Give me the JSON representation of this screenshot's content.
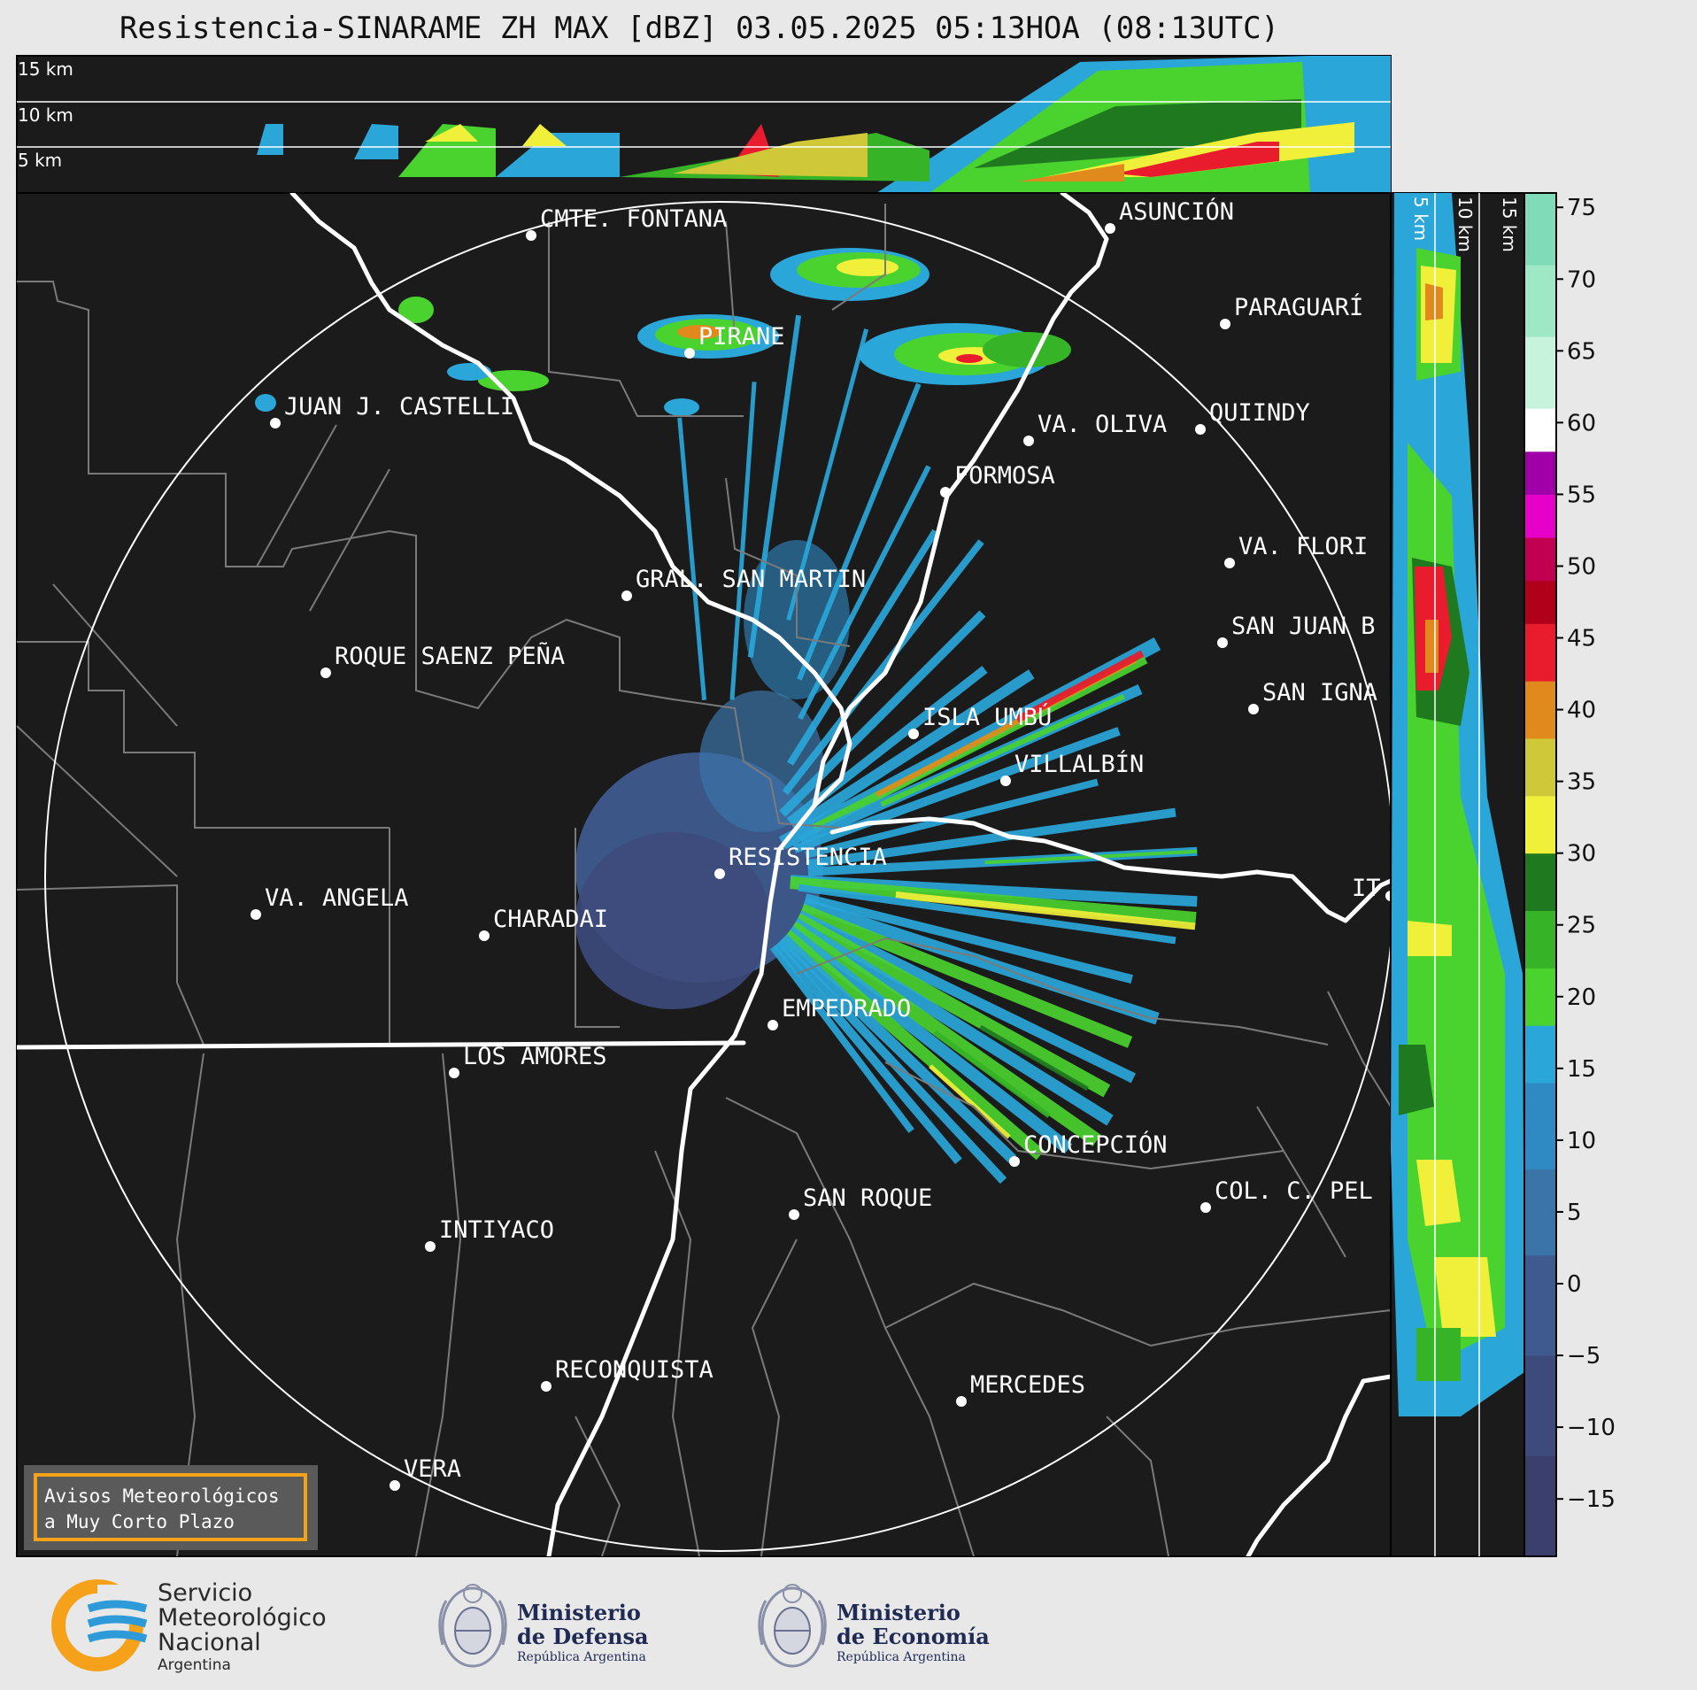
{
  "title": "Resistencia-SINARAME ZH MAX [dBZ] 03.05.2025 05:13HOA (08:13UTC)",
  "top_panel": {
    "height_labels": [
      "15 km",
      "10 km",
      "5 km"
    ]
  },
  "side_panel": {
    "height_labels": [
      "5 km",
      "10 km",
      "15 km"
    ]
  },
  "colorbar": {
    "ticks": [
      "75",
      "70",
      "65",
      "60",
      "55",
      "50",
      "45",
      "40",
      "35",
      "30",
      "25",
      "20",
      "15",
      "10",
      "5",
      "0",
      "−5",
      "−10",
      "−15"
    ],
    "tick_values": [
      75,
      70,
      65,
      60,
      55,
      50,
      45,
      40,
      35,
      30,
      25,
      20,
      15,
      10,
      5,
      0,
      -5,
      -10,
      -15
    ],
    "range": [
      -19,
      76
    ],
    "stops": [
      {
        "from": -19,
        "to": -12,
        "color": "#3b3f6e"
      },
      {
        "from": -12,
        "to": -5,
        "color": "#3d4a7c"
      },
      {
        "from": -5,
        "to": 2,
        "color": "#3f5a8e"
      },
      {
        "from": 2,
        "to": 8,
        "color": "#3a74a8"
      },
      {
        "from": 8,
        "to": 14,
        "color": "#2f8ac4"
      },
      {
        "from": 14,
        "to": 18,
        "color": "#2aa6d9"
      },
      {
        "from": 18,
        "to": 22,
        "color": "#4ad22e"
      },
      {
        "from": 22,
        "to": 26,
        "color": "#37b327"
      },
      {
        "from": 26,
        "to": 30,
        "color": "#1f7a1f"
      },
      {
        "from": 30,
        "to": 34,
        "color": "#f0f03a"
      },
      {
        "from": 34,
        "to": 38,
        "color": "#cfc939"
      },
      {
        "from": 38,
        "to": 42,
        "color": "#e08a1e"
      },
      {
        "from": 42,
        "to": 46,
        "color": "#e81c2c"
      },
      {
        "from": 46,
        "to": 49,
        "color": "#b0001a"
      },
      {
        "from": 49,
        "to": 52,
        "color": "#c20052"
      },
      {
        "from": 52,
        "to": 55,
        "color": "#e600c8"
      },
      {
        "from": 55,
        "to": 58,
        "color": "#a000a8"
      },
      {
        "from": 58,
        "to": 61,
        "color": "#ffffff"
      },
      {
        "from": 61,
        "to": 66,
        "color": "#c7f2dc"
      },
      {
        "from": 66,
        "to": 71,
        "color": "#9ee8c6"
      },
      {
        "from": 71,
        "to": 76,
        "color": "#7fdbb8"
      }
    ]
  },
  "cities": [
    {
      "name": "CMTE. FONTANA"
    },
    {
      "name": "ASUNCIÓN"
    },
    {
      "name": "PARAGUARÍ"
    },
    {
      "name": "PIRANE"
    },
    {
      "name": "JUAN J. CASTELLI"
    },
    {
      "name": "VA. OLIVA"
    },
    {
      "name": "QUIINDY"
    },
    {
      "name": "FORMOSA"
    },
    {
      "name": "VA. FLORI"
    },
    {
      "name": "GRAL. SAN MARTIN"
    },
    {
      "name": "SAN JUAN B"
    },
    {
      "name": "ROQUE SAENZ PEÑA"
    },
    {
      "name": "SAN IGNA"
    },
    {
      "name": "ISLA UMBÚ"
    },
    {
      "name": "VILLALBÍN"
    },
    {
      "name": "RESISTENCIA"
    },
    {
      "name": "IT"
    },
    {
      "name": "VA. ANGELA"
    },
    {
      "name": "CHARADAI"
    },
    {
      "name": "EMPEDRADO"
    },
    {
      "name": "LOS AMORES"
    },
    {
      "name": "CONCEPCIÓN"
    },
    {
      "name": "SAN ROQUE"
    },
    {
      "name": "COL. C. PEL"
    },
    {
      "name": "INTIYACO"
    },
    {
      "name": "RECONQUISTA"
    },
    {
      "name": "MERCEDES"
    },
    {
      "name": "VERA"
    }
  ],
  "alert_box": {
    "line1": "Avisos Meteorológicos",
    "line2": "a Muy Corto Plazo"
  },
  "logos": {
    "smn": {
      "line1": "Servicio",
      "line2": "Meteorológico",
      "line3": "Nacional",
      "line4": "Argentina"
    },
    "defensa": {
      "line1": "Ministerio",
      "line2": "de Defensa",
      "line3": "República Argentina"
    },
    "economia": {
      "line1": "Ministerio",
      "line2": "de Economía",
      "line3": "República Argentina"
    }
  },
  "colors": {
    "map_background": "#1b1b1b",
    "boundary": "#7a7a7a",
    "river": "#ffffff",
    "accent_orange": "#f5a11a",
    "smn_blue": "#2f9ad8",
    "smn_orange": "#f5a11a"
  }
}
